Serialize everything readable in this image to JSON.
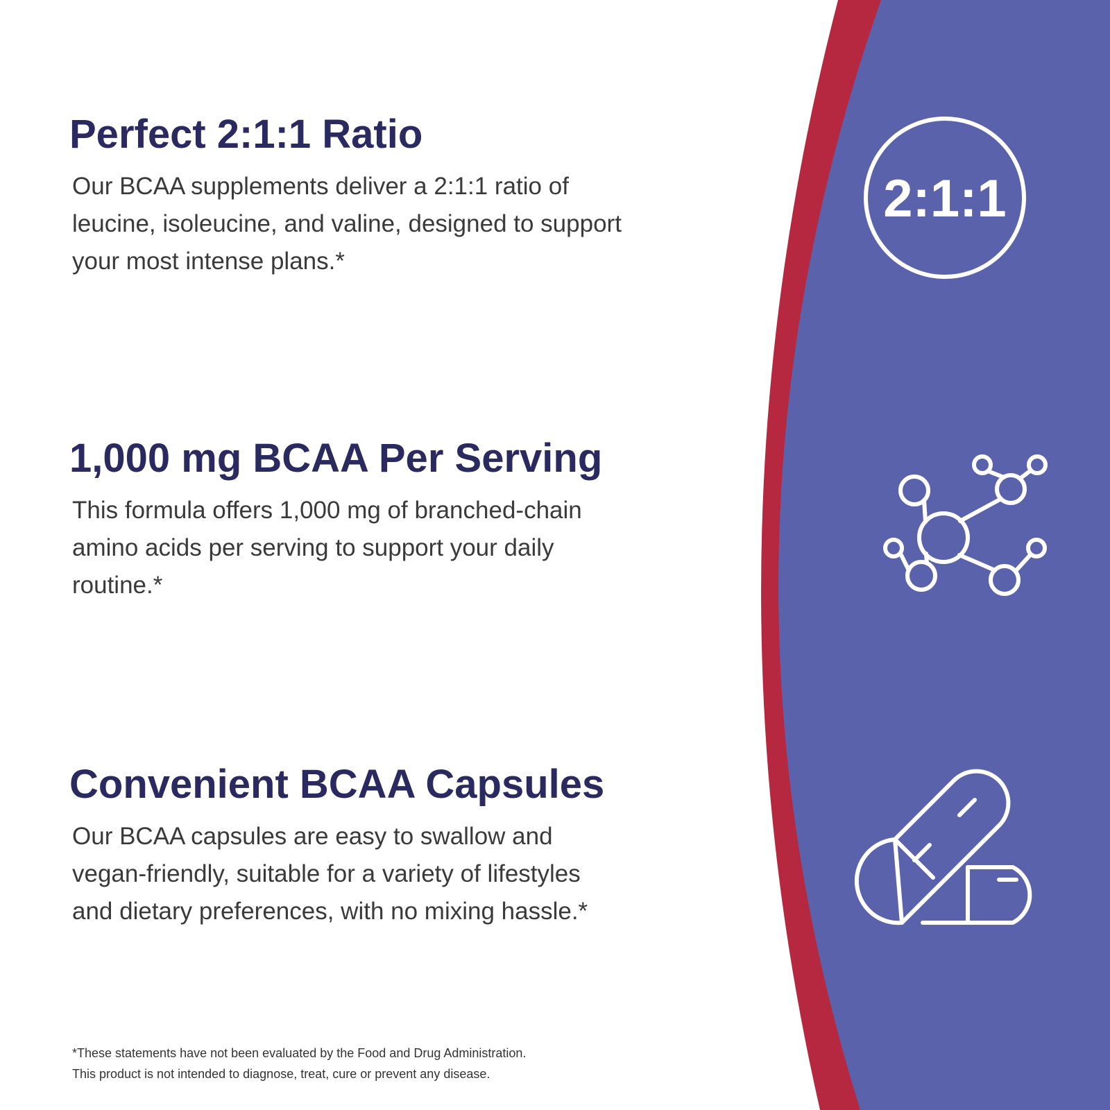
{
  "features": [
    {
      "title": "Perfect 2:1:1 Ratio",
      "body": [
        "Our BCAA supplements deliver a 2:1:1 ratio of",
        "leucine, isoleucine, and valine, designed to support",
        "your most intense plans.*"
      ],
      "icon_label": "2:1:1"
    },
    {
      "title": "1,000 mg BCAA Per Serving",
      "body": [
        "This formula offers 1,000 mg of branched-chain",
        "amino acids per serving to support your daily",
        "routine.*"
      ]
    },
    {
      "title": "Convenient BCAA Capsules",
      "body": [
        "Our BCAA capsules are easy to swallow and",
        "vegan-friendly, suitable for a variety of lifestyles",
        "and dietary preferences, with no mixing hassle.*"
      ]
    }
  ],
  "disclaimer": [
    "*These statements have not been evaluated by the Food and Drug Administration.",
    "This product is not intended to diagnose, treat, cure or prevent any disease."
  ]
}
